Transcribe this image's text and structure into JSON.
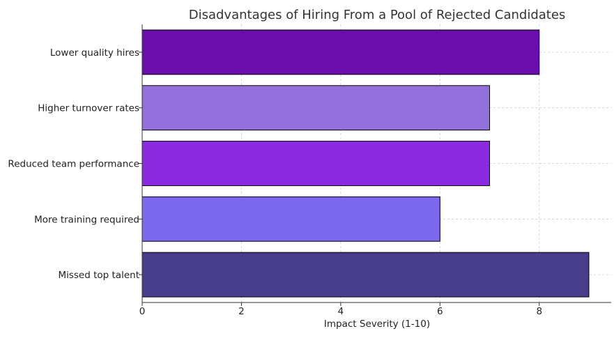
{
  "chart_data": {
    "type": "bar",
    "orientation": "horizontal",
    "title": "Disadvantages of Hiring From a Pool of Rejected Candidates",
    "xlabel": "Impact Severity (1-10)",
    "ylabel": "",
    "categories": [
      "Lower quality hires",
      "Higher turnover rates",
      "Reduced team performance",
      "More training required",
      "Missed top talent"
    ],
    "values": [
      8,
      7,
      7,
      6,
      9
    ],
    "colors": [
      "#6a0dad",
      "#9370db",
      "#8a2be2",
      "#7b68ee",
      "#483d8b"
    ],
    "xlim": [
      0,
      9.45
    ],
    "xticks": [
      "0",
      "2",
      "4",
      "6",
      "8"
    ],
    "grid": true
  }
}
